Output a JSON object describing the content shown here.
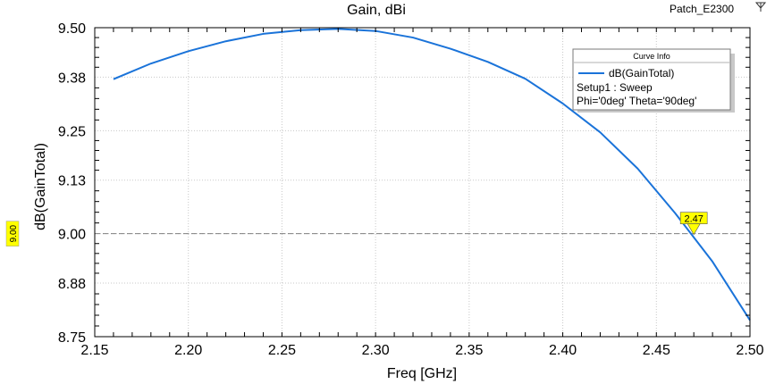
{
  "chart_data": {
    "type": "line",
    "title": "Gain, dBi",
    "project_label": "Patch_E2300",
    "xlabel": "Freq [GHz]",
    "ylabel": "dB(GainTotal)",
    "xlim": [
      2.15,
      2.5
    ],
    "ylim": [
      8.75,
      9.5
    ],
    "x_ticks": [
      "2.15",
      "2.20",
      "2.25",
      "2.30",
      "2.35",
      "2.40",
      "2.45",
      "2.50"
    ],
    "y_ticks": [
      "8.75",
      "8.88",
      "9.00",
      "9.13",
      "9.25",
      "9.38",
      "9.50"
    ],
    "grid": true,
    "series": [
      {
        "name": "dB(GainTotal)",
        "color": "#1a73d9",
        "x": [
          2.16,
          2.18,
          2.2,
          2.22,
          2.24,
          2.26,
          2.28,
          2.3,
          2.32,
          2.34,
          2.36,
          2.38,
          2.4,
          2.42,
          2.44,
          2.46,
          2.48,
          2.5
        ],
        "y": [
          9.375,
          9.413,
          9.443,
          9.467,
          9.485,
          9.494,
          9.497,
          9.492,
          9.476,
          9.449,
          9.417,
          9.376,
          9.316,
          9.246,
          9.158,
          9.05,
          8.932,
          8.79
        ]
      }
    ],
    "legend": {
      "title": "Curve Info",
      "series_label": "dB(GainTotal)",
      "lines": [
        "Setup1 : Sweep",
        "Phi='0deg' Theta='90deg'"
      ],
      "position": "top-right"
    },
    "marker": {
      "x": 2.47,
      "y": 9.0,
      "label": "2.47"
    },
    "reference_line": {
      "y": 9.0,
      "label": "9.00",
      "color": "#808080"
    }
  }
}
